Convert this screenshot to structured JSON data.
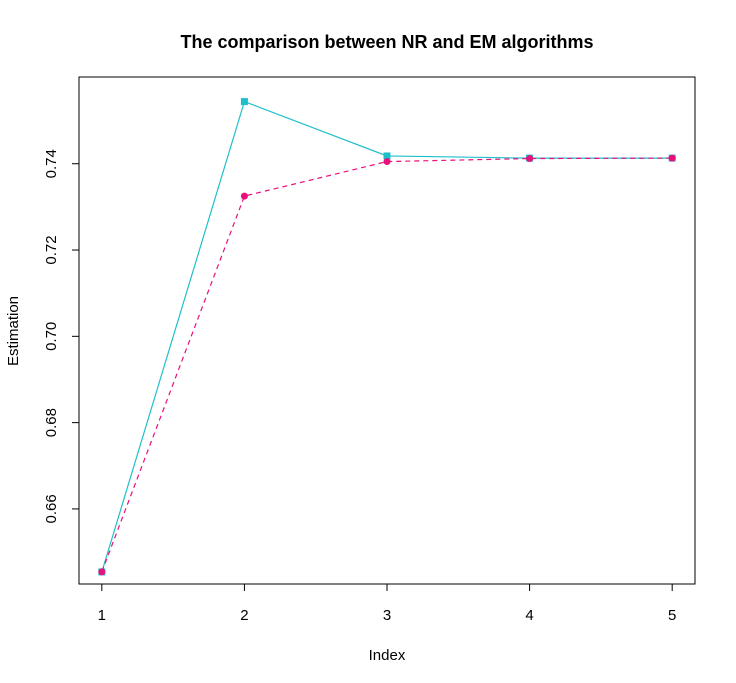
{
  "chart_data": {
    "type": "line",
    "title": "The comparison between NR and EM algorithms",
    "xlabel": "Index",
    "ylabel": "Estimation",
    "x": [
      1,
      2,
      3,
      4,
      5
    ],
    "xticks": [
      "1",
      "2",
      "3",
      "4",
      "5"
    ],
    "yticks": [
      "0.66",
      "0.68",
      "0.70",
      "0.72",
      "0.74"
    ],
    "xlim": [
      0.84,
      5.16
    ],
    "ylim": [
      0.6426,
      0.7601
    ],
    "grid": false,
    "legend": "none",
    "series": [
      {
        "values": [
          0.6454,
          0.7544,
          0.7418,
          0.7413,
          0.7413
        ],
        "color": "#1fbfca",
        "line_style": "solid",
        "marker": "square"
      },
      {
        "values": [
          0.6454,
          0.7325,
          0.7405,
          0.7412,
          0.7413
        ],
        "color": "#e8107a",
        "line_style": "dashed",
        "marker": "circle"
      }
    ]
  }
}
